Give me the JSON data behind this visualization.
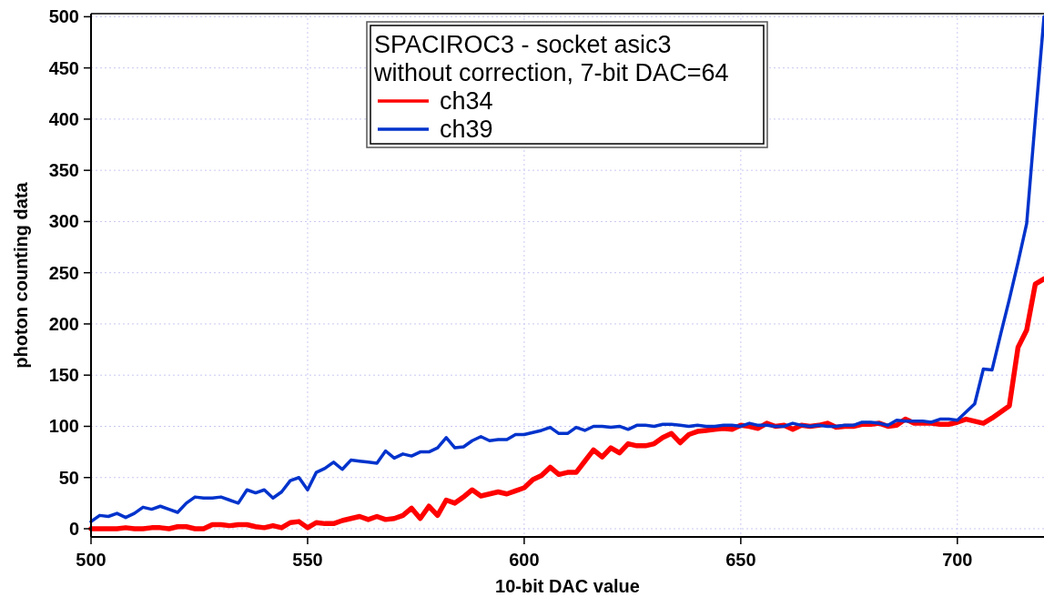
{
  "chart_data": {
    "type": "line",
    "xlabel": "10-bit DAC value",
    "ylabel": "photon counting data",
    "legend_title": "SPACIROC3 - socket asic3\nwithout correction, 7-bit DAC=64",
    "xlim": [
      500,
      720
    ],
    "xticks": [
      500,
      550,
      600,
      650,
      700
    ],
    "ylim": [
      -8,
      503
    ],
    "yticks": [
      0,
      50,
      100,
      150,
      200,
      250,
      300,
      350,
      400,
      450,
      500
    ],
    "grid": true,
    "legend": "top",
    "marker": "none",
    "line_style": "solid",
    "x": [
      500,
      502,
      504,
      506,
      508,
      510,
      512,
      514,
      516,
      518,
      520,
      522,
      524,
      526,
      528,
      530,
      532,
      534,
      536,
      538,
      540,
      542,
      544,
      546,
      548,
      550,
      552,
      554,
      556,
      558,
      560,
      562,
      564,
      566,
      568,
      570,
      572,
      574,
      576,
      578,
      580,
      582,
      584,
      586,
      588,
      590,
      592,
      594,
      596,
      598,
      600,
      602,
      604,
      606,
      608,
      610,
      612,
      614,
      616,
      618,
      620,
      622,
      624,
      626,
      628,
      630,
      632,
      634,
      636,
      638,
      640,
      642,
      644,
      646,
      648,
      650,
      652,
      654,
      656,
      658,
      660,
      662,
      664,
      666,
      668,
      670,
      672,
      674,
      676,
      678,
      680,
      682,
      684,
      686,
      688,
      690,
      692,
      694,
      696,
      698,
      700,
      702,
      704,
      706,
      708,
      710,
      712,
      714,
      716,
      718,
      720
    ],
    "series": [
      {
        "name": "ch34",
        "color": "#ff0000",
        "values": [
          0,
          0,
          0,
          0,
          1,
          0,
          0,
          1,
          1,
          0,
          2,
          2,
          0,
          0,
          4,
          4,
          3,
          4,
          4,
          2,
          1,
          3,
          1,
          6,
          7,
          1,
          6,
          5,
          5,
          8,
          10,
          12,
          9,
          12,
          9,
          10,
          13,
          20,
          10,
          22,
          13,
          28,
          25,
          31,
          38,
          32,
          34,
          36,
          34,
          37,
          40,
          48,
          52,
          60,
          53,
          55,
          55,
          66,
          77,
          70,
          79,
          74,
          83,
          81,
          81,
          83,
          89,
          93,
          84,
          92,
          95,
          96,
          97,
          98,
          97,
          101,
          100,
          98,
          103,
          100,
          101,
          97,
          101,
          100,
          101,
          103,
          99,
          100,
          100,
          102,
          102,
          103,
          100,
          101,
          107,
          103,
          103,
          103,
          102,
          102,
          104,
          107,
          105,
          103,
          108,
          114,
          120,
          177,
          194,
          239,
          244
        ]
      },
      {
        "name": "ch39",
        "color": "#0033cc",
        "values": [
          7,
          13,
          12,
          15,
          11,
          15,
          21,
          19,
          22,
          19,
          16,
          25,
          31,
          30,
          30,
          31,
          28,
          25,
          38,
          35,
          38,
          30,
          36,
          47,
          50,
          38,
          55,
          59,
          65,
          58,
          67,
          66,
          65,
          64,
          76,
          69,
          73,
          71,
          75,
          75,
          79,
          89,
          79,
          80,
          86,
          90,
          86,
          87,
          87,
          92,
          92,
          94,
          96,
          99,
          93,
          93,
          99,
          96,
          100,
          100,
          99,
          100,
          97,
          101,
          101,
          100,
          102,
          102,
          101,
          100,
          101,
          100,
          100,
          101,
          101,
          100,
          103,
          101,
          101,
          100,
          100,
          103,
          101,
          100,
          101,
          100,
          100,
          101,
          101,
          104,
          104,
          103,
          101,
          106,
          105,
          105,
          105,
          104,
          107,
          107,
          106,
          114,
          122,
          156,
          155,
          190,
          224,
          260,
          298,
          400,
          500
        ]
      }
    ]
  }
}
